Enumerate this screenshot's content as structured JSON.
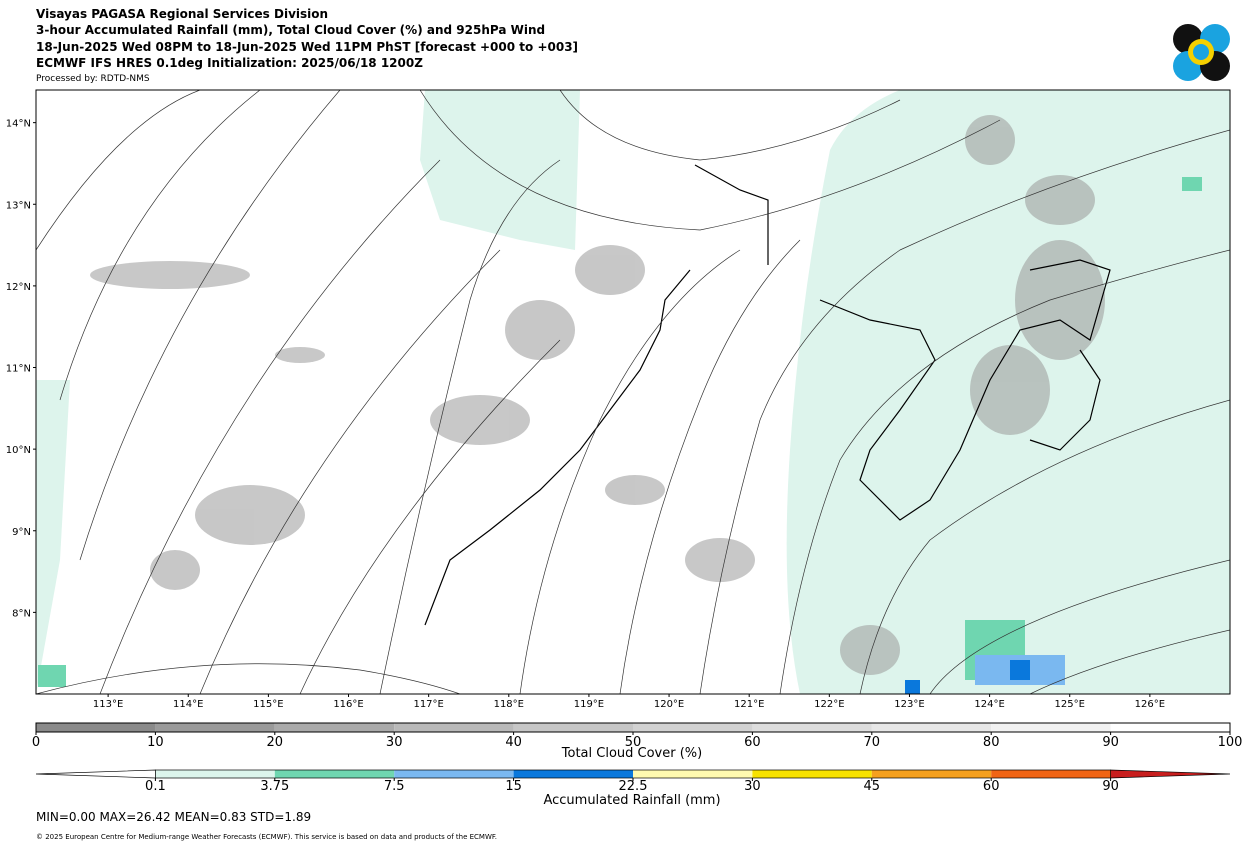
{
  "header": {
    "lines": [
      "Visayas PAGASA Regional Services Division",
      "3-hour Accumulated Rainfall (mm), Total Cloud Cover (%) and 925hPa Wind",
      "18-Jun-2025 Wed 08PM to 18-Jun-2025 Wed 11PM PhST [forecast +000 to +003]",
      "ECMWF IFS HRES 0.1deg Initialization: 2025/06/18 1200Z"
    ],
    "processed_by": "Processed by: RDTD-NMS"
  },
  "map": {
    "xlim": [
      112.1,
      127.0
    ],
    "ylim": [
      7.0,
      14.4
    ],
    "xticks": [
      {
        "value": 113,
        "label": "113°E"
      },
      {
        "value": 114,
        "label": "114°E"
      },
      {
        "value": 115,
        "label": "115°E"
      },
      {
        "value": 116,
        "label": "116°E"
      },
      {
        "value": 117,
        "label": "117°E"
      },
      {
        "value": 118,
        "label": "118°E"
      },
      {
        "value": 119,
        "label": "119°E"
      },
      {
        "value": 120,
        "label": "120°E"
      },
      {
        "value": 121,
        "label": "121°E"
      },
      {
        "value": 122,
        "label": "122°E"
      },
      {
        "value": 123,
        "label": "123°E"
      },
      {
        "value": 124,
        "label": "124°E"
      },
      {
        "value": 125,
        "label": "125°E"
      },
      {
        "value": 126,
        "label": "126°E"
      }
    ],
    "yticks": [
      {
        "value": 14,
        "label": "14°N"
      },
      {
        "value": 13,
        "label": "13°N"
      },
      {
        "value": 12,
        "label": "12°N"
      },
      {
        "value": 11,
        "label": "11°N"
      },
      {
        "value": 10,
        "label": "10°N"
      },
      {
        "value": 9,
        "label": "9°N"
      },
      {
        "value": 8,
        "label": "8°N"
      }
    ]
  },
  "cloud_colorbar": {
    "label": "Total Cloud Cover (%)",
    "ticks": [
      0,
      10,
      20,
      30,
      40,
      50,
      60,
      70,
      80,
      90,
      100
    ],
    "colors": [
      "#8a8a8a",
      "#9a9a9a",
      "#aaaaaa",
      "#b9b9b9",
      "#c6c6c6",
      "#d2d2d2",
      "#dddddd",
      "#e7e7e7",
      "#f1f1f1",
      "#ffffff"
    ]
  },
  "rain_colorbar": {
    "label": "Accumulated Rainfall (mm)",
    "ticks": [
      "0.1",
      "3.75",
      "7.5",
      "15",
      "22.5",
      "30",
      "45",
      "60",
      "90"
    ],
    "colors": [
      "#dcf5ec",
      "#6fd6b0",
      "#7ab8f0",
      "#0a78dc",
      "#fffab0",
      "#f7e200",
      "#f5a01e",
      "#f06414"
    ],
    "under_color": "#ffffff",
    "over_color": "#c81e1e"
  },
  "stats": "MIN=0.00   MAX=26.42   MEAN=0.83   STD=1.89",
  "copyright": "© 2025 European Centre for Medium-range Weather Forecasts (ECMWF). This service is based on data and products of the ECMWF."
}
